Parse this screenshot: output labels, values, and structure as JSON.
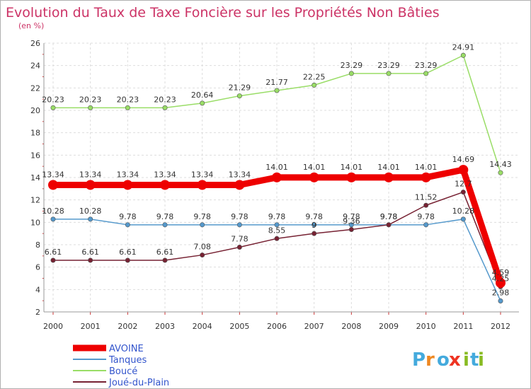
{
  "chart_data": {
    "type": "line",
    "title": "Evolution du Taux de Taxe Foncière sur les Propriétés Non Bâties",
    "subtitle": "(en %)",
    "x": [
      "2000",
      "2001",
      "2002",
      "2003",
      "2004",
      "2005",
      "2006",
      "2007",
      "2008",
      "2009",
      "2010",
      "2011",
      "2012"
    ],
    "ylim": [
      2,
      26
    ],
    "yticks": [
      2,
      4,
      6,
      8,
      10,
      12,
      14,
      16,
      18,
      20,
      22,
      24,
      26
    ],
    "grid": true,
    "legend_position": "bottom-left",
    "series": [
      {
        "name": "AVOINE",
        "color": "#ee0000",
        "values": [
          13.34,
          13.34,
          13.34,
          13.34,
          13.34,
          13.34,
          14.01,
          14.01,
          14.01,
          14.01,
          14.01,
          14.69,
          4.59
        ],
        "labels": [
          "13.34",
          "13.34",
          "13.34",
          "13.34",
          "13.34",
          "13.34",
          "14.01",
          "14.01",
          "14.01",
          "14.01",
          "14.01",
          "14.69",
          "4.59"
        ]
      },
      {
        "name": "Tanques",
        "color": "#5599cc",
        "values": [
          10.28,
          10.28,
          9.78,
          9.78,
          9.78,
          9.78,
          9.78,
          9.78,
          9.78,
          9.78,
          9.78,
          10.28,
          2.98
        ],
        "labels": [
          "10.28",
          "10.28",
          "9.78",
          "9.78",
          "9.78",
          "9.78",
          "9.78",
          "9.78",
          "9.78",
          "9.78",
          "9.78",
          "10.28",
          "2.98"
        ]
      },
      {
        "name": "Boucé",
        "color": "#99dd66",
        "values": [
          20.23,
          20.23,
          20.23,
          20.23,
          20.64,
          21.29,
          21.77,
          22.25,
          23.29,
          23.29,
          23.29,
          24.91,
          14.43
        ],
        "labels": [
          "20.23",
          "20.23",
          "20.23",
          "20.23",
          "20.64",
          "21.29",
          "21.77",
          "22.25",
          "23.29",
          "23.29",
          "23.29",
          "24.91",
          "14.43"
        ]
      },
      {
        "name": "Joué-du-Plain",
        "color": "#772233",
        "values": [
          6.61,
          6.61,
          6.61,
          6.61,
          7.08,
          7.78,
          8.55,
          9.0,
          9.36,
          9.78,
          11.52,
          12.7,
          4.25
        ],
        "labels": [
          "6.61",
          "6.61",
          "6.61",
          "6.61",
          "7.08",
          "7.78",
          "8.55",
          "9",
          "9.36",
          "9.78",
          "11.52",
          "12.7",
          "4.25"
        ]
      }
    ]
  },
  "brand": {
    "letters": [
      "P",
      "r",
      "o",
      "x",
      "i",
      "t",
      "i"
    ],
    "colors": [
      "#44aadd",
      "#ee8822",
      "#44aadd",
      "#ee3322",
      "#88bb22",
      "#44aadd",
      "#88bb22"
    ]
  }
}
